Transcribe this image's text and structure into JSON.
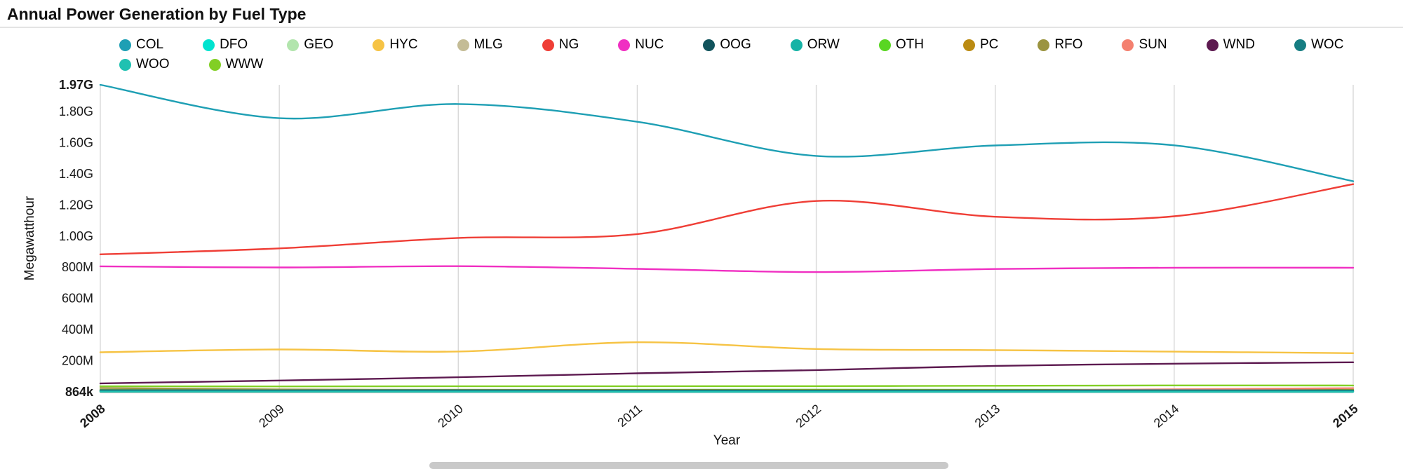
{
  "page": {
    "title": "Annual Power Generation by Fuel Type"
  },
  "chart_data": {
    "type": "line",
    "title": "Annual Power Generation by Fuel Type",
    "xlabel": "Year",
    "ylabel": "Megawatthour",
    "unit": "MWh",
    "grid": "vertical-only",
    "legend_position": "top",
    "x": [
      2008,
      2009,
      2010,
      2011,
      2012,
      2013,
      2014,
      2015
    ],
    "x_ticks": [
      {
        "label": "2008",
        "bold": true
      },
      {
        "label": "2009",
        "bold": false
      },
      {
        "label": "2010",
        "bold": false
      },
      {
        "label": "2011",
        "bold": false
      },
      {
        "label": "2012",
        "bold": false
      },
      {
        "label": "2013",
        "bold": false
      },
      {
        "label": "2014",
        "bold": false
      },
      {
        "label": "2015",
        "bold": true
      }
    ],
    "ylim": [
      864000,
      1970000000
    ],
    "y_ticks": [
      {
        "label": "864k",
        "value": 864000,
        "bold": true
      },
      {
        "label": "200M",
        "value": 200000000,
        "bold": false
      },
      {
        "label": "400M",
        "value": 400000000,
        "bold": false
      },
      {
        "label": "600M",
        "value": 600000000,
        "bold": false
      },
      {
        "label": "800M",
        "value": 800000000,
        "bold": false
      },
      {
        "label": "1.00G",
        "value": 1000000000,
        "bold": false
      },
      {
        "label": "1.20G",
        "value": 1200000000,
        "bold": false
      },
      {
        "label": "1.40G",
        "value": 1400000000,
        "bold": false
      },
      {
        "label": "1.60G",
        "value": 1600000000,
        "bold": false
      },
      {
        "label": "1.80G",
        "value": 1800000000,
        "bold": false
      },
      {
        "label": "1.97G",
        "value": 1970000000,
        "bold": true
      }
    ],
    "series": [
      {
        "name": "COL",
        "color": "#1e9fb4",
        "values": [
          1970000000,
          1756000000,
          1847000000,
          1733000000,
          1514000000,
          1581000000,
          1582000000,
          1352000000
        ]
      },
      {
        "name": "DFO",
        "color": "#00e3cf",
        "values": [
          5200000,
          3200000,
          3700000,
          2800000,
          2200000,
          2600000,
          3000000,
          2800000
        ]
      },
      {
        "name": "GEO",
        "color": "#b2e5ad",
        "values": [
          14800000,
          15000000,
          15200000,
          15300000,
          15600000,
          15800000,
          15900000,
          15900000
        ]
      },
      {
        "name": "HYC",
        "color": "#f6c344",
        "values": [
          255000000,
          273000000,
          260000000,
          319000000,
          276000000,
          269000000,
          259000000,
          249000000
        ]
      },
      {
        "name": "MLG",
        "color": "#c4bc96",
        "values": [
          7200000,
          7700000,
          8100000,
          8600000,
          9700000,
          10400000,
          10800000,
          10700000
        ]
      },
      {
        "name": "NG",
        "color": "#ef3e36",
        "values": [
          883000000,
          921000000,
          988000000,
          1013000000,
          1225000000,
          1124000000,
          1127000000,
          1333000000
        ]
      },
      {
        "name": "NUC",
        "color": "#f02fc2",
        "values": [
          806000000,
          799000000,
          807000000,
          790000000,
          769000000,
          789000000,
          797000000,
          797000000
        ]
      },
      {
        "name": "OOG",
        "color": "#11535c",
        "values": [
          11700000,
          10600000,
          11300000,
          11600000,
          11900000,
          12900000,
          12500000,
          12800000
        ]
      },
      {
        "name": "ORW",
        "color": "#16b3a6",
        "values": [
          2300000,
          2200000,
          2100000,
          2000000,
          2000000,
          2100000,
          2200000,
          2300000
        ]
      },
      {
        "name": "OTH",
        "color": "#59d622",
        "values": [
          12200000,
          11900000,
          12900000,
          13900000,
          14200000,
          13500000,
          13700000,
          13800000
        ]
      },
      {
        "name": "PC",
        "color": "#bb8b12",
        "values": [
          13200000,
          12100000,
          13700000,
          13100000,
          12200000,
          12900000,
          13500000,
          12900000
        ]
      },
      {
        "name": "RFO",
        "color": "#9b9440",
        "values": [
          26200000,
          17000000,
          13000000,
          9500000,
          5300000,
          4000000,
          6500000,
          4900000
        ]
      },
      {
        "name": "SUN",
        "color": "#f4806f",
        "values": [
          864000,
          890000,
          1210000,
          1820000,
          4330000,
          9040000,
          17700000,
          24900000
        ]
      },
      {
        "name": "WND",
        "color": "#5d1a50",
        "values": [
          55400000,
          73900000,
          94700000,
          120200000,
          140800000,
          167800000,
          181700000,
          190700000
        ]
      },
      {
        "name": "WOC",
        "color": "#167d82",
        "values": [
          11700000,
          10700000,
          11200000,
          10800000,
          10200000,
          10700000,
          11000000,
          10400000
        ]
      },
      {
        "name": "WOO",
        "color": "#1fc1b1",
        "values": [
          1800000,
          1700000,
          1600000,
          1500000,
          1400000,
          1300000,
          1300000,
          1200000
        ]
      },
      {
        "name": "WWW",
        "color": "#82cf25",
        "values": [
          37300000,
          36100000,
          37200000,
          37500000,
          37800000,
          39900000,
          42300000,
          41900000
        ]
      }
    ]
  }
}
